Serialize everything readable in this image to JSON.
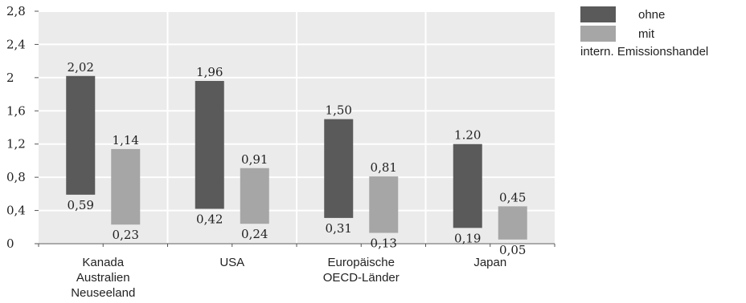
{
  "chart_data": {
    "type": "bar",
    "categories": [
      [
        "Kanada",
        "Australien",
        "Neuseeland"
      ],
      [
        "USA"
      ],
      [
        "Europäische",
        "OECD-Länder"
      ],
      [
        "Japan"
      ]
    ],
    "series": [
      {
        "name": "ohne",
        "color": "#5a5a5a",
        "low": [
          0.59,
          0.42,
          0.31,
          0.19
        ],
        "high": [
          2.02,
          1.96,
          1.5,
          1.2
        ],
        "low_labels": [
          "0,59",
          "0,42",
          "0,31",
          "0,19"
        ],
        "high_labels": [
          "2,02",
          "1,96",
          "1,50",
          "1.20"
        ]
      },
      {
        "name": "mit",
        "color": "#a6a6a6",
        "low": [
          0.23,
          0.24,
          0.13,
          0.05
        ],
        "high": [
          1.14,
          0.91,
          0.81,
          0.45
        ],
        "low_labels": [
          "0,23",
          "0,24",
          "0,13",
          "0,05"
        ],
        "high_labels": [
          "1,14",
          "0,91",
          "0,81",
          "0,45"
        ]
      }
    ],
    "ylim": [
      0,
      2.8
    ],
    "yticks": [
      0,
      0.4,
      0.8,
      1.2,
      1.6,
      2,
      2.4,
      2.8
    ],
    "ytick_labels": [
      "0",
      "0,4",
      "0,8",
      "1,2",
      "1,6",
      "2",
      "2,4",
      "2,8"
    ],
    "grid": true,
    "legend_position": "top-right",
    "legend_note": "intern. Emissionshandel"
  }
}
